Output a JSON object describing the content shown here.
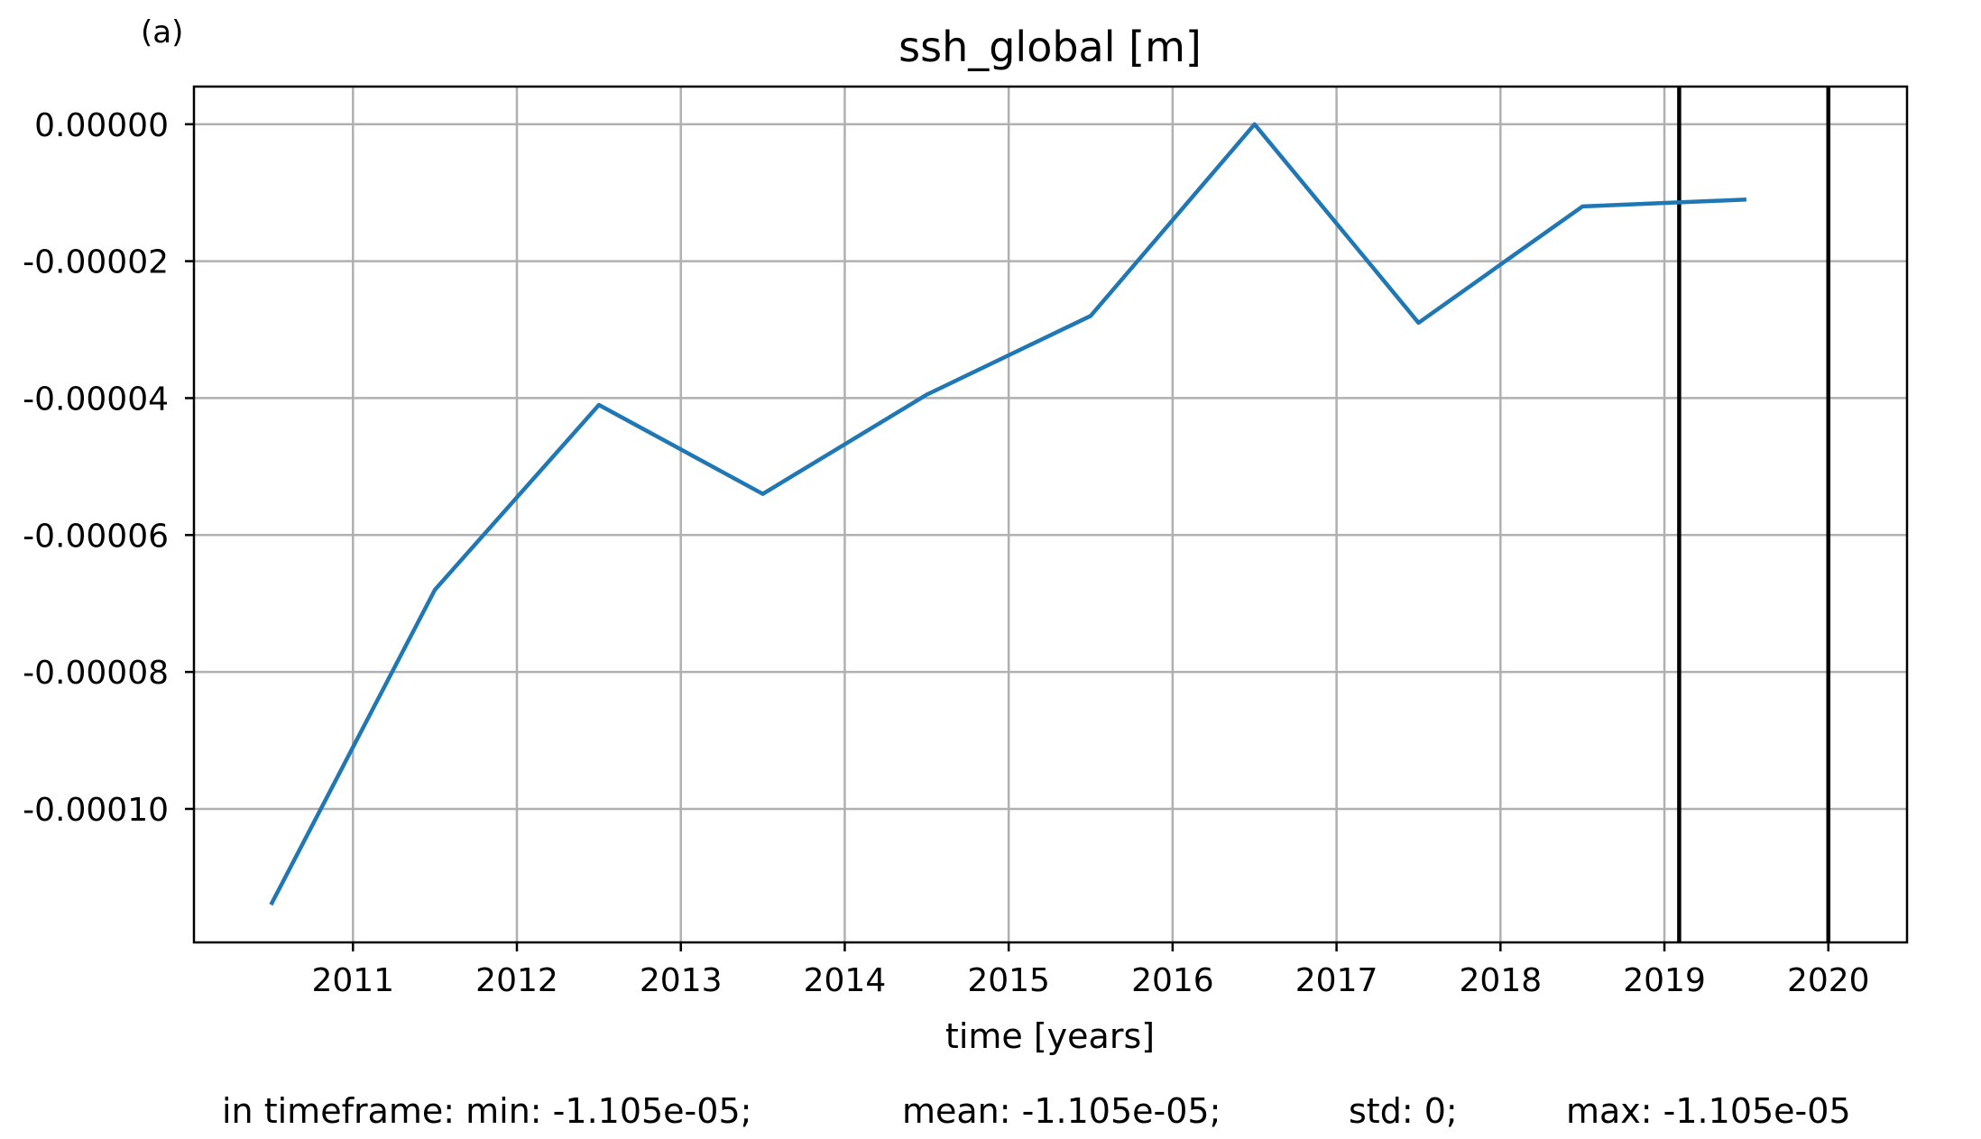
{
  "chart_data": {
    "type": "line",
    "panel_label": "(a)",
    "title": "ssh_global [m]",
    "xlabel": "time [years]",
    "ylabel": "",
    "xlim": [
      2010.03,
      2020.48
    ],
    "ylim": [
      -0.0001195,
      5.5e-06
    ],
    "x_ticks": [
      2011,
      2012,
      2013,
      2014,
      2015,
      2016,
      2017,
      2018,
      2019,
      2020
    ],
    "x_tick_labels": [
      "2011",
      "2012",
      "2013",
      "2014",
      "2015",
      "2016",
      "2017",
      "2018",
      "2019",
      "2020"
    ],
    "y_ticks": [
      0,
      -2e-05,
      -4e-05,
      -6e-05,
      -8e-05,
      -0.0001
    ],
    "y_tick_labels": [
      "0.00000",
      "-0.00002",
      "-0.00004",
      "-0.00006",
      "-0.00008",
      "-0.00010"
    ],
    "grid": true,
    "series": [
      {
        "color": "#1f77b4",
        "x": [
          2010.5,
          2011.5,
          2012.5,
          2013.5,
          2014.5,
          2015.5,
          2016.5,
          2017.5,
          2018.5,
          2019.5
        ],
        "y": [
          -0.000114,
          -6.8e-05,
          -4.1e-05,
          -5.4e-05,
          -3.95e-05,
          -2.8e-05,
          0.0,
          -2.9e-05,
          -1.2e-05,
          -1.1e-05
        ]
      }
    ],
    "vlines": [
      {
        "x": 2019.09,
        "color": "#000000"
      },
      {
        "x": 2020.0,
        "color": "#000000"
      }
    ],
    "stats": {
      "min": "in timeframe: min: -1.105e-05;",
      "mean": "mean: -1.105e-05;",
      "std": "std: 0;",
      "max": "max: -1.105e-05"
    }
  }
}
